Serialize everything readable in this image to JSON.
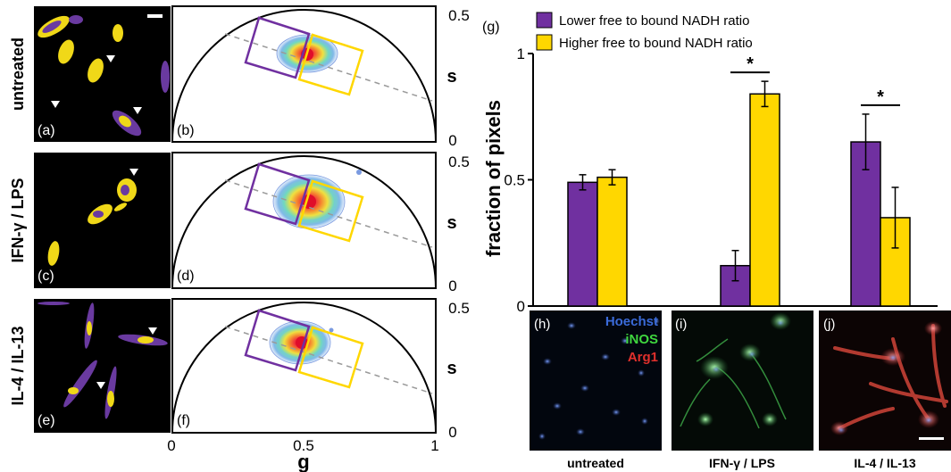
{
  "colors": {
    "lower": "#7030a0",
    "higher": "#ffd700",
    "cell_yellow": "#f0d818",
    "cell_purple": "#6a3aa0",
    "hoechst": "#3a6ad8",
    "inos": "#3fd63f",
    "arg1": "#e0302c",
    "phasor_line": "#9a9a9a"
  },
  "row_labels": [
    "untreated",
    "IFN-γ / LPS",
    "IL-4 / IL-13"
  ],
  "micro_panel_letters": [
    "(a)",
    "(c)",
    "(e)"
  ],
  "phasor_panel_letters": [
    "(b)",
    "(d)",
    "(f)"
  ],
  "phasor_axis": {
    "s_label": "s",
    "g_label": "g",
    "s_ticks": [
      "0.5",
      "0"
    ],
    "g_ticks": [
      "0",
      "0.5",
      "1"
    ]
  },
  "bar_panel_letter": "(g)",
  "image_panels": {
    "letters": [
      "(h)",
      "(i)",
      "(j)"
    ],
    "stain_labels": [
      "Hoechst",
      "iNOS",
      "Arg1"
    ],
    "captions": [
      "untreated",
      "IFN-γ / LPS",
      "IL-4 / IL-13"
    ]
  },
  "chart_data": {
    "type": "bar",
    "categories": [
      "untreated",
      "IFN-γ / LPS",
      "IL-4 / IL-13"
    ],
    "series": [
      {
        "name": "Lower free to bound NADH ratio",
        "values": [
          0.49,
          0.16,
          0.65
        ],
        "errors": [
          0.03,
          0.06,
          0.11
        ]
      },
      {
        "name": "Higher free to bound NADH ratio",
        "values": [
          0.51,
          0.84,
          0.35
        ],
        "errors": [
          0.03,
          0.05,
          0.12
        ]
      }
    ],
    "ylabel": "fraction of pixels",
    "ylim": [
      0,
      1
    ],
    "yticks": [
      "0",
      "0.5",
      "1"
    ],
    "significance": [
      {
        "category": "IFN-γ / LPS",
        "label": "*"
      },
      {
        "category": "IL-4 / IL-13",
        "label": "*"
      }
    ],
    "legend_position": "top-left"
  }
}
